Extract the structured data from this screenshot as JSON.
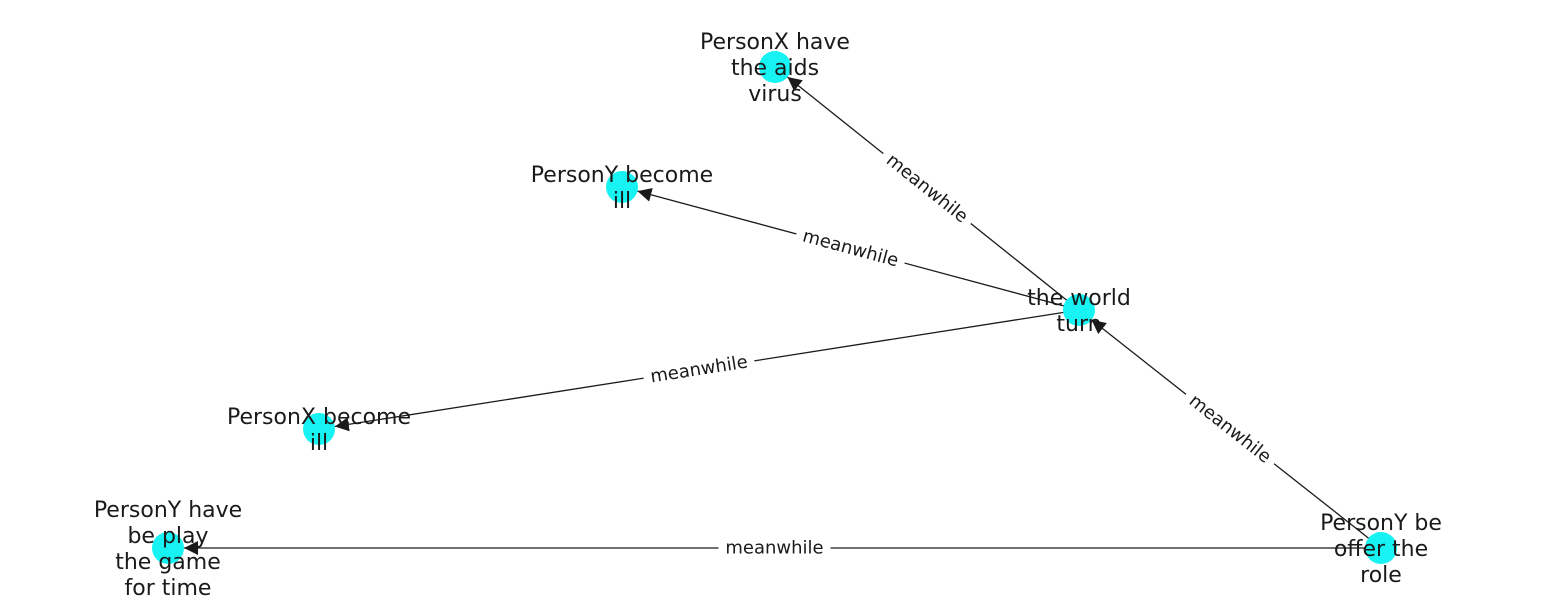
{
  "diagram": {
    "nodes": [
      {
        "id": "aids",
        "lines": [
          "PersonX have",
          "the aids",
          "virus"
        ]
      },
      {
        "id": "personY_ill",
        "lines": [
          "PersonY become",
          "ill"
        ]
      },
      {
        "id": "world",
        "lines": [
          "the world",
          "turn"
        ]
      },
      {
        "id": "personX_ill",
        "lines": [
          "PersonX become",
          "ill"
        ]
      },
      {
        "id": "game",
        "lines": [
          "PersonY have",
          "be play",
          "the game",
          "for time"
        ]
      },
      {
        "id": "role",
        "lines": [
          "PersonY be",
          "offer the",
          "role"
        ]
      }
    ],
    "edges": [
      {
        "from": "world",
        "to": "aids",
        "label": "meanwhile"
      },
      {
        "from": "world",
        "to": "personY_ill",
        "label": "meanwhile"
      },
      {
        "from": "world",
        "to": "personX_ill",
        "label": "meanwhile"
      },
      {
        "from": "role",
        "to": "world",
        "label": "meanwhile"
      },
      {
        "from": "role",
        "to": "game",
        "label": "meanwhile"
      }
    ]
  }
}
